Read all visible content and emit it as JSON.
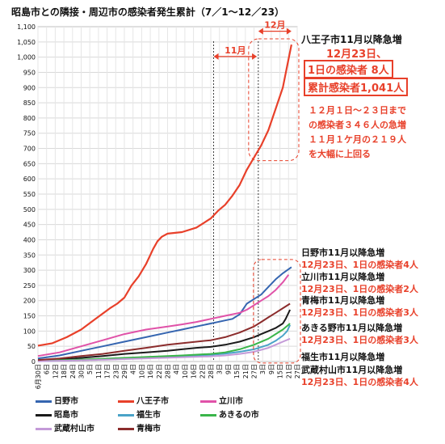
{
  "title": "昭島市との隣接・周辺市の感染者発生累計（7／1～12／23）",
  "chart_data": {
    "type": "line",
    "ylim": [
      0,
      1100
    ],
    "yticks": [
      0,
      50,
      100,
      150,
      200,
      250,
      300,
      350,
      400,
      450,
      500,
      550,
      600,
      650,
      700,
      750,
      800,
      850,
      900,
      950,
      1000,
      1050,
      1100
    ],
    "x_tick_labels": [
      "6月30日",
      "6日",
      "12日",
      "18日",
      "24日",
      "30日",
      "5日",
      "11日",
      "17日",
      "23日",
      "29日",
      "4日",
      "10日",
      "16日",
      "22日",
      "28日",
      "4日",
      "10日",
      "16日",
      "22日",
      "28日",
      "3日",
      "9日",
      "15日",
      "21日",
      "27日",
      "3日",
      "9日",
      "15日",
      "21日",
      "27日"
    ],
    "x_day_start": 0,
    "x_day_end": 180,
    "vlines_day": [
      122,
      153
    ],
    "range_labels": [
      {
        "label": "11月",
        "from_day": 122,
        "to_day": 152
      },
      {
        "label": "12月",
        "from_day": 153,
        "to_day": 176
      }
    ],
    "series": [
      {
        "name": "八王子市",
        "color": "#e8402a",
        "width": 2.2,
        "points": [
          [
            0,
            52
          ],
          [
            10,
            60
          ],
          [
            20,
            80
          ],
          [
            30,
            105
          ],
          [
            40,
            140
          ],
          [
            50,
            175
          ],
          [
            55,
            190
          ],
          [
            60,
            210
          ],
          [
            65,
            250
          ],
          [
            70,
            280
          ],
          [
            75,
            320
          ],
          [
            80,
            370
          ],
          [
            83,
            395
          ],
          [
            86,
            410
          ],
          [
            90,
            420
          ],
          [
            100,
            425
          ],
          [
            110,
            440
          ],
          [
            115,
            455
          ],
          [
            120,
            470
          ],
          [
            125,
            495
          ],
          [
            130,
            515
          ],
          [
            135,
            545
          ],
          [
            140,
            580
          ],
          [
            145,
            630
          ],
          [
            150,
            670
          ],
          [
            155,
            710
          ],
          [
            160,
            760
          ],
          [
            165,
            830
          ],
          [
            170,
            900
          ],
          [
            173,
            970
          ],
          [
            176,
            1041
          ]
        ]
      },
      {
        "name": "日野市",
        "color": "#3565b0",
        "width": 2,
        "points": [
          [
            0,
            10
          ],
          [
            15,
            20
          ],
          [
            30,
            35
          ],
          [
            45,
            50
          ],
          [
            60,
            65
          ],
          [
            75,
            80
          ],
          [
            90,
            95
          ],
          [
            100,
            105
          ],
          [
            110,
            115
          ],
          [
            120,
            125
          ],
          [
            130,
            135
          ],
          [
            135,
            140
          ],
          [
            140,
            155
          ],
          [
            145,
            190
          ],
          [
            150,
            205
          ],
          [
            155,
            220
          ],
          [
            160,
            245
          ],
          [
            165,
            270
          ],
          [
            170,
            290
          ],
          [
            176,
            310
          ]
        ]
      },
      {
        "name": "立川市",
        "color": "#e052a8",
        "width": 2,
        "points": [
          [
            0,
            18
          ],
          [
            15,
            30
          ],
          [
            30,
            50
          ],
          [
            45,
            70
          ],
          [
            60,
            90
          ],
          [
            75,
            105
          ],
          [
            90,
            115
          ],
          [
            100,
            122
          ],
          [
            110,
            130
          ],
          [
            120,
            140
          ],
          [
            130,
            150
          ],
          [
            140,
            160
          ],
          [
            145,
            170
          ],
          [
            150,
            185
          ],
          [
            155,
            200
          ],
          [
            160,
            215
          ],
          [
            165,
            235
          ],
          [
            170,
            260
          ],
          [
            174,
            285
          ]
        ]
      },
      {
        "name": "昭島市",
        "color": "#1a1a1a",
        "width": 2,
        "points": [
          [
            0,
            2
          ],
          [
            15,
            6
          ],
          [
            30,
            12
          ],
          [
            45,
            18
          ],
          [
            60,
            25
          ],
          [
            75,
            30
          ],
          [
            90,
            35
          ],
          [
            100,
            40
          ],
          [
            110,
            45
          ],
          [
            120,
            48
          ],
          [
            130,
            55
          ],
          [
            140,
            65
          ],
          [
            150,
            80
          ],
          [
            155,
            90
          ],
          [
            160,
            100
          ],
          [
            165,
            110
          ],
          [
            170,
            125
          ],
          [
            172,
            140
          ],
          [
            175,
            170
          ]
        ]
      },
      {
        "name": "福生市",
        "color": "#4aa3c8",
        "width": 2,
        "points": [
          [
            0,
            1
          ],
          [
            20,
            3
          ],
          [
            40,
            6
          ],
          [
            60,
            9
          ],
          [
            80,
            13
          ],
          [
            100,
            18
          ],
          [
            120,
            22
          ],
          [
            130,
            26
          ],
          [
            140,
            32
          ],
          [
            150,
            40
          ],
          [
            160,
            55
          ],
          [
            165,
            68
          ],
          [
            170,
            85
          ],
          [
            173,
            100
          ],
          [
            175,
            120
          ]
        ]
      },
      {
        "name": "あきるの市",
        "color": "#3ab54a",
        "width": 2,
        "points": [
          [
            0,
            2
          ],
          [
            20,
            5
          ],
          [
            40,
            8
          ],
          [
            60,
            12
          ],
          [
            80,
            16
          ],
          [
            100,
            20
          ],
          [
            120,
            25
          ],
          [
            130,
            30
          ],
          [
            140,
            40
          ],
          [
            150,
            55
          ],
          [
            160,
            75
          ],
          [
            165,
            90
          ],
          [
            170,
            105
          ],
          [
            175,
            125
          ]
        ]
      },
      {
        "name": "武蔵村山市",
        "color": "#c49ad8",
        "width": 2,
        "points": [
          [
            0,
            1
          ],
          [
            20,
            3
          ],
          [
            40,
            5
          ],
          [
            60,
            8
          ],
          [
            80,
            11
          ],
          [
            100,
            14
          ],
          [
            120,
            17
          ],
          [
            130,
            20
          ],
          [
            140,
            25
          ],
          [
            150,
            32
          ],
          [
            160,
            45
          ],
          [
            165,
            55
          ],
          [
            170,
            65
          ],
          [
            175,
            75
          ]
        ]
      },
      {
        "name": "青梅市",
        "color": "#8b2c2c",
        "width": 2,
        "points": [
          [
            0,
            5
          ],
          [
            15,
            10
          ],
          [
            30,
            18
          ],
          [
            45,
            25
          ],
          [
            60,
            35
          ],
          [
            75,
            45
          ],
          [
            90,
            55
          ],
          [
            100,
            60
          ],
          [
            110,
            65
          ],
          [
            120,
            70
          ],
          [
            130,
            80
          ],
          [
            140,
            95
          ],
          [
            150,
            115
          ],
          [
            155,
            130
          ],
          [
            160,
            145
          ],
          [
            165,
            160
          ],
          [
            170,
            175
          ],
          [
            175,
            190
          ]
        ]
      }
    ],
    "legend": [
      "日野市",
      "八王子市",
      "立川市",
      "昭島市",
      "福生市",
      "あきるの市",
      "武蔵村山市",
      "青梅市"
    ]
  },
  "annotations": {
    "hachioji_title": "八王子市11月以降急増",
    "hachioji_date": "12月23日、",
    "hachioji_daily": "1日の感染者 8人",
    "hachioji_total": "累計感染者1,041人",
    "hachioji_note1": "１２月１日～２３日まで",
    "hachioji_note2": "の感染者３４６人の急増",
    "hachioji_note3": "１１月１ケ月の２１９人",
    "hachioji_note4": "を大幅に上回る",
    "hino_title": "日野市11月以降急増",
    "hino_detail": "12月23日、1日の感染者4人",
    "tachikawa_title": "立川市11月以降急増",
    "tachikawa_detail": "12月23日、1日の感染者2人",
    "ome_title": "青梅市11月以降急増",
    "ome_detail": "12月23日、1日の感染者3人",
    "akiruno_title": "あきる野市11月以降急増",
    "akiruno_detail": "12月23日、1日の感染者3人",
    "fussa_title": "福生市11月以降急増",
    "musashimurayama_title": "武蔵村山市11月以降急増",
    "musashimurayama_detail": "12月23日、1日の感染者4人"
  }
}
